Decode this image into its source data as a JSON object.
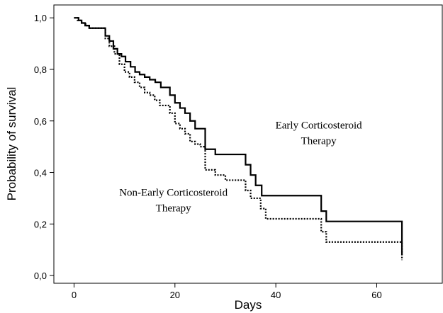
{
  "chart_data": {
    "type": "line",
    "xlabel": "Days",
    "ylabel": "Probability of survival",
    "xlim": [
      -4,
      73
    ],
    "ylim": [
      -0.03,
      1.05
    ],
    "xticks": [
      {
        "value": 0,
        "label": "0"
      },
      {
        "value": 20,
        "label": "20"
      },
      {
        "value": 40,
        "label": "40"
      },
      {
        "value": 60,
        "label": "60"
      }
    ],
    "yticks": [
      {
        "value": 0.0,
        "label": "0,0"
      },
      {
        "value": 0.2,
        "label": "0,2"
      },
      {
        "value": 0.4,
        "label": "0,4"
      },
      {
        "value": 0.6,
        "label": "0,6"
      },
      {
        "value": 0.8,
        "label": "0,8"
      },
      {
        "value": 1.0,
        "label": "1,0"
      }
    ],
    "grid": false,
    "step": true,
    "annotations": [
      {
        "lines": [
          "Early Corticosteroid",
          "Therapy"
        ],
        "x": 48.5,
        "y": 0.57
      },
      {
        "lines": [
          "Non-Early Corticosteroid",
          "Therapy"
        ],
        "x": 19.7,
        "y": 0.31
      }
    ],
    "series": [
      {
        "style": "solid",
        "x": [
          0,
          0.9,
          1.5,
          2.2,
          3.0,
          6.2,
          7.0,
          7.8,
          8.6,
          9.4,
          10.2,
          11.2,
          12.1,
          13.0,
          14.0,
          15.0,
          16.1,
          17.2,
          19.0,
          20.0,
          21.0,
          22.0,
          23.0,
          24.0,
          26.0,
          28.0,
          34.0,
          35.0,
          36.0,
          37.2,
          38.0,
          49.0,
          50.0,
          65.0,
          65.0
        ],
        "y": [
          1.0,
          0.99,
          0.98,
          0.97,
          0.96,
          0.93,
          0.91,
          0.88,
          0.86,
          0.85,
          0.83,
          0.81,
          0.79,
          0.78,
          0.77,
          0.76,
          0.75,
          0.73,
          0.7,
          0.67,
          0.65,
          0.63,
          0.6,
          0.57,
          0.49,
          0.47,
          0.43,
          0.39,
          0.35,
          0.31,
          0.31,
          0.25,
          0.21,
          0.21,
          0.08
        ]
      },
      {
        "style": "dotted",
        "x": [
          0,
          0.7,
          1.5,
          2.3,
          3.0,
          6.2,
          7.0,
          8.0,
          9.0,
          10.0,
          11.0,
          12.0,
          13.0,
          14.0,
          15.0,
          16.0,
          17.0,
          19.0,
          20.0,
          21.0,
          22.0,
          23.0,
          24.0,
          25.0,
          26.0,
          28.0,
          30.0,
          34.0,
          35.0,
          37.0,
          38.0,
          48.0,
          49.0,
          50.0,
          65.0,
          65.0
        ],
        "y": [
          1.0,
          0.99,
          0.98,
          0.97,
          0.96,
          0.92,
          0.89,
          0.86,
          0.82,
          0.79,
          0.77,
          0.75,
          0.73,
          0.71,
          0.7,
          0.68,
          0.66,
          0.63,
          0.59,
          0.57,
          0.55,
          0.52,
          0.51,
          0.5,
          0.41,
          0.39,
          0.37,
          0.33,
          0.3,
          0.26,
          0.22,
          0.22,
          0.17,
          0.13,
          0.13,
          0.06
        ]
      }
    ]
  }
}
